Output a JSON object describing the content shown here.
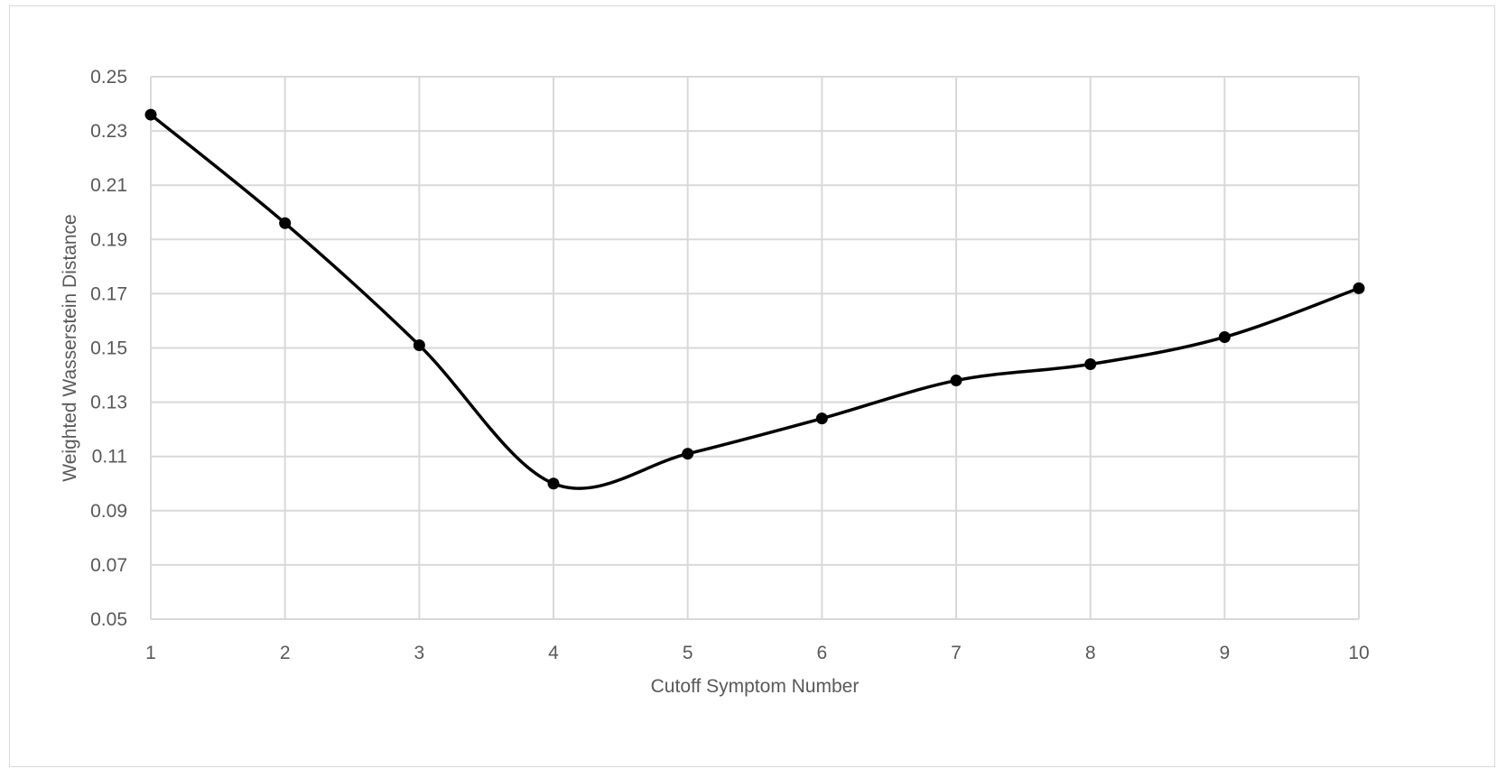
{
  "chart_data": {
    "type": "line",
    "title": "",
    "xlabel": "Cutoff Symptom Number",
    "ylabel": "Weighted Wasserstein Distance",
    "x": [
      1,
      2,
      3,
      4,
      5,
      6,
      7,
      8,
      9,
      10
    ],
    "series": [
      {
        "values": [
          0.236,
          0.196,
          0.151,
          0.1,
          0.111,
          0.124,
          0.138,
          0.144,
          0.154,
          0.172
        ]
      }
    ],
    "xlim": [
      1,
      10
    ],
    "ylim": [
      0.05,
      0.25
    ],
    "yticks": [
      "0.05",
      "0.07",
      "0.09",
      "0.11",
      "0.13",
      "0.15",
      "0.17",
      "0.19",
      "0.21",
      "0.23",
      "0.25"
    ],
    "xticks": [
      "1",
      "2",
      "3",
      "4",
      "5",
      "6",
      "7",
      "8",
      "9",
      "10"
    ],
    "grid": true,
    "smooth": true,
    "markers": true,
    "colors": {
      "line": "#000000",
      "grid": "#d9d9d9",
      "text": "#595959"
    }
  }
}
